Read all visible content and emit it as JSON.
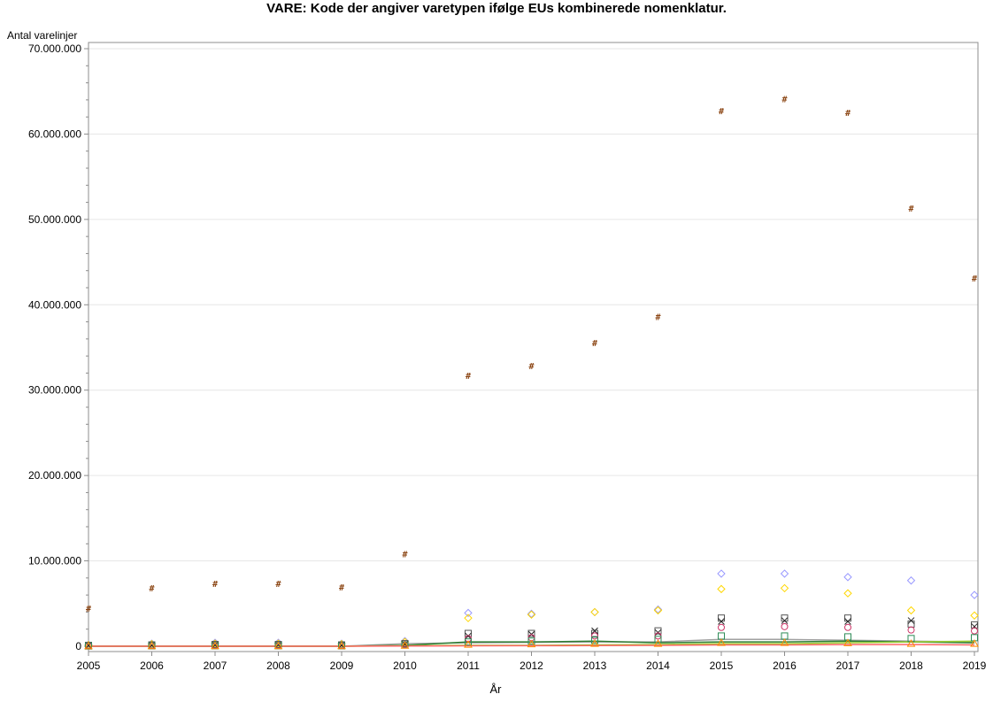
{
  "chart_data": {
    "type": "scatter",
    "title": "VARE: Kode der angiver varetypen ifølge EUs kombinerede nomenklatur.",
    "xlabel": "År",
    "ylabel": "Antal varelinjer",
    "x": [
      2005,
      2006,
      2007,
      2008,
      2009,
      2010,
      2011,
      2012,
      2013,
      2014,
      2015,
      2016,
      2017,
      2018,
      2019
    ],
    "x_tick_labels": [
      "2005",
      "2006",
      "2007",
      "2008",
      "2009",
      "2010",
      "2011",
      "2012",
      "2013",
      "2014",
      "2015",
      "2016",
      "2017",
      "2018",
      "2019"
    ],
    "ylim": [
      0,
      70000000
    ],
    "y_ticks": [
      0,
      10000000,
      20000000,
      30000000,
      40000000,
      50000000,
      60000000,
      70000000
    ],
    "y_tick_labels": [
      "0",
      "10.000.000",
      "20.000.000",
      "30.000.000",
      "40.000.000",
      "50.000.000",
      "60.000.000",
      "70.000.000"
    ],
    "grid": true,
    "series": [
      {
        "marker": "hash",
        "color": "#8b4513",
        "values": [
          4400000,
          6800000,
          7300000,
          7300000,
          6900000,
          10800000,
          31700000,
          32800000,
          35500000,
          38600000,
          62700000,
          64100000,
          62500000,
          51300000,
          43100000
        ]
      },
      {
        "marker": "diamond",
        "color": "#9999ff",
        "values": [
          200000,
          300000,
          400000,
          400000,
          300000,
          600000,
          3900000,
          3800000,
          4000000,
          4300000,
          8500000,
          8500000,
          8100000,
          7700000,
          6000000
        ]
      },
      {
        "marker": "diamond",
        "color": "#ffd700",
        "values": [
          150000,
          250000,
          300000,
          300000,
          250000,
          500000,
          3300000,
          3700000,
          4000000,
          4200000,
          6700000,
          6800000,
          6200000,
          4200000,
          3600000
        ]
      },
      {
        "marker": "square",
        "color": "#555555",
        "values": [
          100000,
          150000,
          200000,
          200000,
          150000,
          300000,
          1500000,
          1500000,
          1500000,
          1800000,
          3300000,
          3300000,
          3300000,
          2600000,
          2500000
        ]
      },
      {
        "marker": "x",
        "color": "#222222",
        "values": [
          80000,
          120000,
          150000,
          150000,
          120000,
          250000,
          1200000,
          1400000,
          1800000,
          1600000,
          2900000,
          3000000,
          2900000,
          3000000,
          2300000
        ]
      },
      {
        "marker": "circle",
        "color": "#cc3366",
        "values": [
          60000,
          80000,
          100000,
          100000,
          90000,
          200000,
          900000,
          1000000,
          1200000,
          1200000,
          2200000,
          2300000,
          2200000,
          1900000,
          1800000
        ]
      },
      {
        "marker": "square",
        "color": "#2e8b57",
        "values": [
          30000,
          50000,
          60000,
          60000,
          50000,
          150000,
          500000,
          600000,
          700000,
          800000,
          1200000,
          1200000,
          1100000,
          900000,
          1000000
        ]
      },
      {
        "marker": "triangle",
        "color": "#ff8c00",
        "values": [
          10000,
          20000,
          30000,
          30000,
          20000,
          80000,
          200000,
          250000,
          300000,
          300000,
          400000,
          400000,
          380000,
          300000,
          300000
        ]
      },
      {
        "marker": "line",
        "color": "#a0a0a0",
        "values": [
          0,
          0,
          0,
          0,
          0,
          300000,
          400000,
          450000,
          500000,
          500000,
          800000,
          800000,
          700000,
          600000,
          500000
        ]
      },
      {
        "marker": "line",
        "color": "#2e7d32",
        "values": [
          0,
          0,
          0,
          0,
          0,
          100000,
          500000,
          500000,
          600000,
          400000,
          500000,
          500000,
          600000,
          500000,
          400000
        ]
      },
      {
        "marker": "line",
        "color": "#9acd32",
        "values": [
          0,
          0,
          0,
          0,
          0,
          50000,
          100000,
          100000,
          150000,
          200000,
          300000,
          300000,
          400000,
          500000,
          600000
        ]
      },
      {
        "marker": "line",
        "color": "#ff6666",
        "values": [
          0,
          0,
          0,
          0,
          0,
          30000,
          50000,
          60000,
          80000,
          100000,
          150000,
          150000,
          200000,
          200000,
          150000
        ]
      }
    ]
  }
}
